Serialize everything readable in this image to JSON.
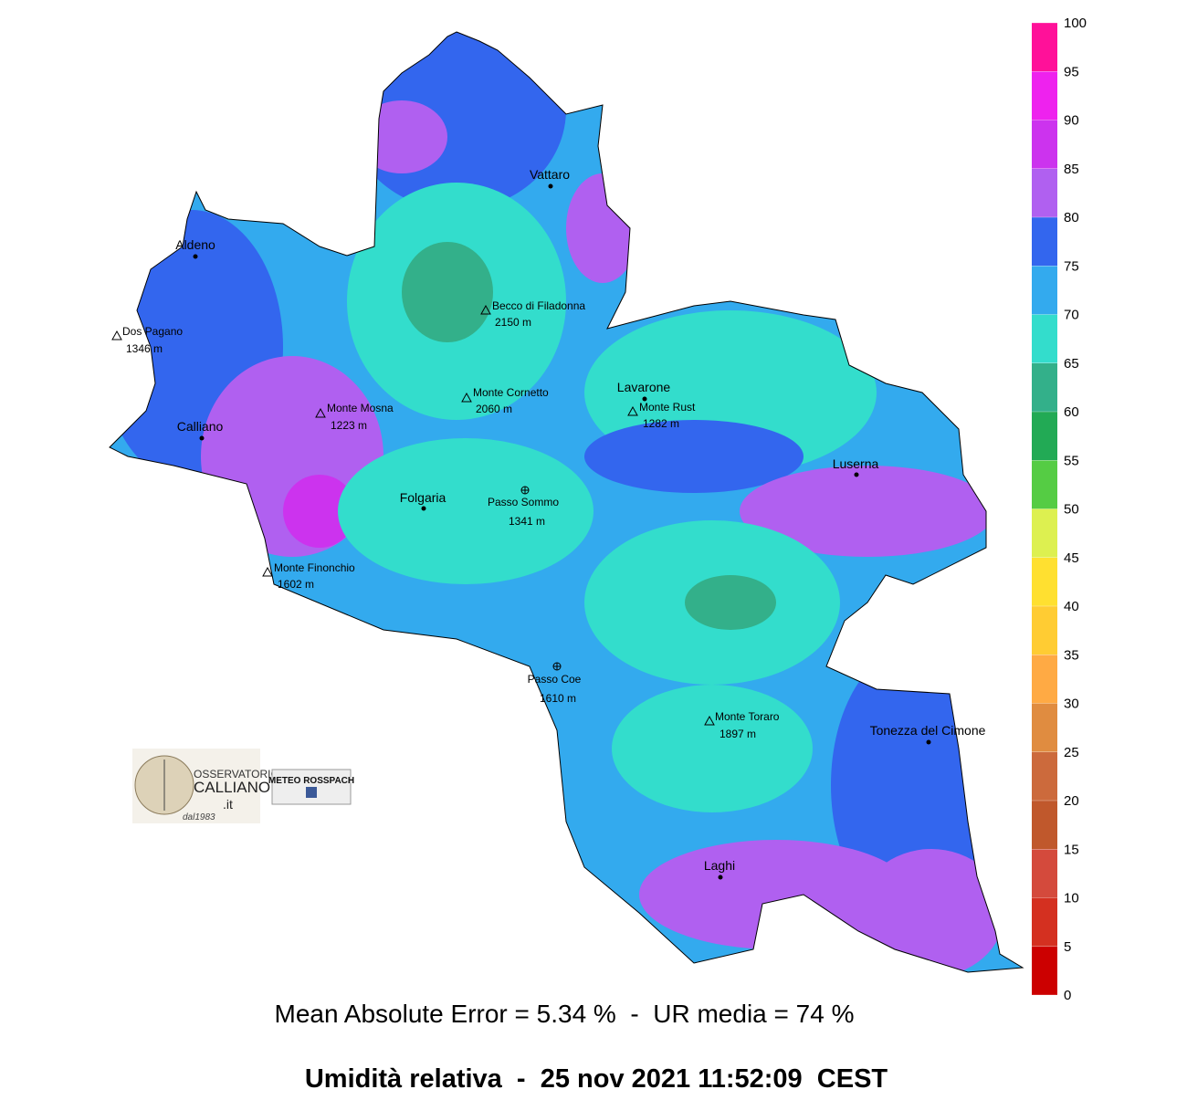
{
  "map": {
    "places": [
      "Vattaro",
      "Aldeno",
      "Lavarone",
      "Calliano",
      "Luserna",
      "Folgaria",
      "Tonezza del Cimone",
      "Laghi"
    ],
    "summits": [
      {
        "name": "Dos Pagano",
        "elevation": "1346 m"
      },
      {
        "name": "Becco di Filadonna",
        "elevation": "2150 m"
      },
      {
        "name": "Monte Cornetto",
        "elevation": "2060 m"
      },
      {
        "name": "Monte Rust",
        "elevation": "1282 m"
      },
      {
        "name": "Monte Mosna",
        "elevation": "1223 m"
      },
      {
        "name": "Monte Finonchio",
        "elevation": "1602 m"
      },
      {
        "name": "Monte Toraro",
        "elevation": "1897 m"
      }
    ],
    "passes": [
      {
        "name": "Passo Sommo",
        "elevation": "1341 m"
      },
      {
        "name": "Passo Coe",
        "elevation": "1610 m"
      }
    ]
  },
  "colorbar": {
    "ticks": [
      0,
      5,
      10,
      15,
      20,
      25,
      30,
      35,
      40,
      45,
      50,
      55,
      60,
      65,
      70,
      75,
      80,
      85,
      90,
      95,
      100
    ],
    "colors": [
      "#cc0000",
      "#d43020",
      "#d44a3c",
      "#c0582c",
      "#cc6a3c",
      "#e08c40",
      "#ffaa44",
      "#ffcc33",
      "#ffe030",
      "#ddf050",
      "#55cc44",
      "#22aa55",
      "#33b08a",
      "#33ddcc",
      "#33aaee",
      "#3366ee",
      "#b060f0",
      "#cc33ee",
      "#ee22ee",
      "#ff1199"
    ]
  },
  "logos": {
    "osservatorio": "OSSERVATORIO",
    "calliano": "CALLIANO",
    "domain": ".it",
    "since": "dal1983",
    "rosspach": "METEO ROSSPACH"
  },
  "footer": {
    "stats": "Mean Absolute Error = 5.34 %  -  UR media = 74 %",
    "title": "Umidità relativa  -  25 nov 2021 11:52:09  CEST"
  }
}
